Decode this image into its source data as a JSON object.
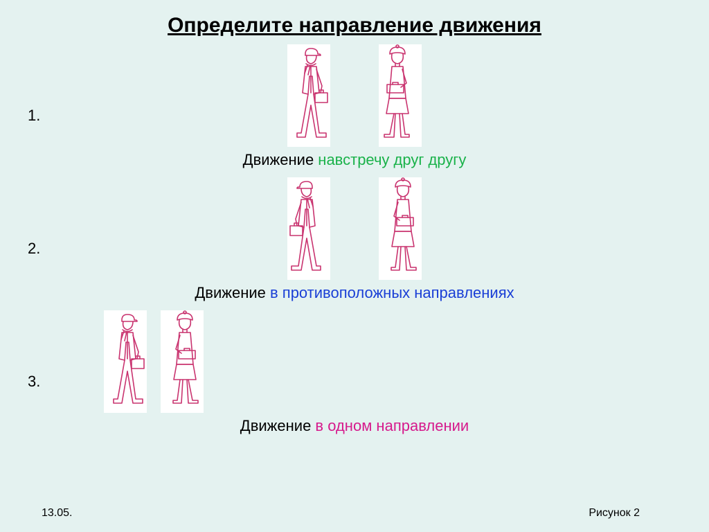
{
  "background_color": "#e4f2f0",
  "title": {
    "text": "Определите направление движения",
    "fontsize": 30,
    "color": "#000000"
  },
  "caption_prefix": "Движение ",
  "sections": [
    {
      "num": "1.",
      "phrase": "навстречу друг другу",
      "phrase_color": "#1ab24a",
      "figures": {
        "left_dir": "right",
        "right_dir": "left"
      }
    },
    {
      "num": "2.",
      "phrase": "в противоположных направлениях",
      "phrase_color": "#1a3fd6",
      "figures": {
        "left_dir": "left",
        "right_dir": "right"
      }
    },
    {
      "num": "3.",
      "phrase": "в одном направлении",
      "phrase_color": "#d61a8c",
      "figures": {
        "left_dir": "right",
        "right_dir": "right"
      }
    }
  ],
  "figure_style": {
    "stroke": "#c9336f",
    "stroke_width": 1.6,
    "fill": "none",
    "bg": "#ffffff",
    "width": 62,
    "height": 148
  },
  "date": "13.05.",
  "figref": "Рисунок 2"
}
